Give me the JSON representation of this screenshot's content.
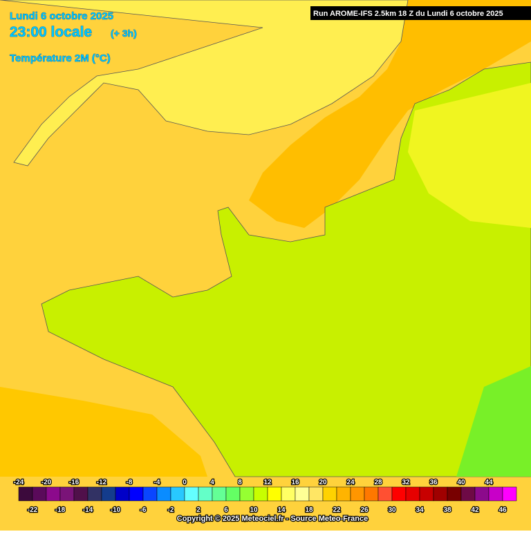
{
  "header": {
    "date": "Lundi 6 octobre 2025",
    "time": "23:00 locale",
    "offset": "(+ 3h)",
    "parameter": "Température 2M (°C)",
    "run": "Run AROME-IFS 2.5km 18 Z du Lundi 6 octobre 2025"
  },
  "legend": {
    "values": [
      -24,
      -22,
      -20,
      -18,
      -16,
      -14,
      -12,
      -10,
      -8,
      -6,
      -4,
      -2,
      0,
      2,
      4,
      6,
      8,
      10,
      12,
      14,
      16,
      18,
      20,
      22,
      24,
      26,
      28,
      30,
      32,
      34,
      36,
      38,
      40,
      42,
      44,
      46
    ],
    "colors": [
      "#3c0a3c",
      "#5a0a5a",
      "#8c0a8c",
      "#7a1478",
      "#50104a",
      "#323264",
      "#143c8c",
      "#0000c8",
      "#0000ff",
      "#0a46ff",
      "#0a8cff",
      "#28c8ff",
      "#64ffff",
      "#64ffc8",
      "#64ff96",
      "#64ff64",
      "#96ff32",
      "#c8ff00",
      "#ffff00",
      "#ffff64",
      "#ffff96",
      "#ffe664",
      "#ffd200",
      "#ffb400",
      "#ff9600",
      "#ff7800",
      "#ff5032",
      "#ff0000",
      "#e60000",
      "#c80000",
      "#a00000",
      "#780000",
      "#6e0a46",
      "#8c0a8c",
      "#c800c8",
      "#ff00ff"
    ]
  },
  "footer": {
    "copyright": "Copyright © 2025 Meteociel.fr - Source Meteo-France"
  }
}
